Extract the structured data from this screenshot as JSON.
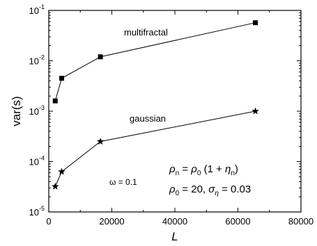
{
  "chart_data": {
    "type": "scatter",
    "xlabel": "L",
    "ylabel": "var(s)",
    "x_scale": "linear",
    "y_scale": "log",
    "xlim": [
      0,
      80000
    ],
    "ylim_exponents": [
      -5,
      -1
    ],
    "x_ticks": [
      "0",
      "20000",
      "40000",
      "60000",
      "80000"
    ],
    "y_tick_bases": [
      "10",
      "10",
      "10",
      "10",
      "10"
    ],
    "y_tick_exps": [
      "-5",
      "-4",
      "-3",
      "-2",
      "-1"
    ],
    "grid": false,
    "series": [
      {
        "name": "multifractal",
        "marker": "square",
        "x": [
          2048,
          4096,
          16384,
          65536
        ],
        "y": [
          0.0016,
          0.0045,
          0.012,
          0.057
        ]
      },
      {
        "name": "gaussian",
        "marker": "star",
        "x": [
          2048,
          4096,
          16384,
          65536
        ],
        "y": [
          3.2e-05,
          6.3e-05,
          0.00025,
          0.001
        ]
      }
    ],
    "annotations": {
      "omega": "ω = 0.1",
      "eq1_rho": "ρ",
      "eq1_n": "n",
      "eq1_eq": " = ",
      "eq1_rho0": "ρ",
      "eq1_zero": "0",
      "eq1_open": " (1 + ",
      "eq1_eta": "η",
      "eq1_n2": "n",
      "eq1_close": ")",
      "eq2_rho": "ρ",
      "eq2_zero": "0",
      "eq2_val": " = 20, ",
      "eq2_sigma": "σ",
      "eq2_eta": "η",
      "eq2_val2": " = 0.03"
    }
  }
}
